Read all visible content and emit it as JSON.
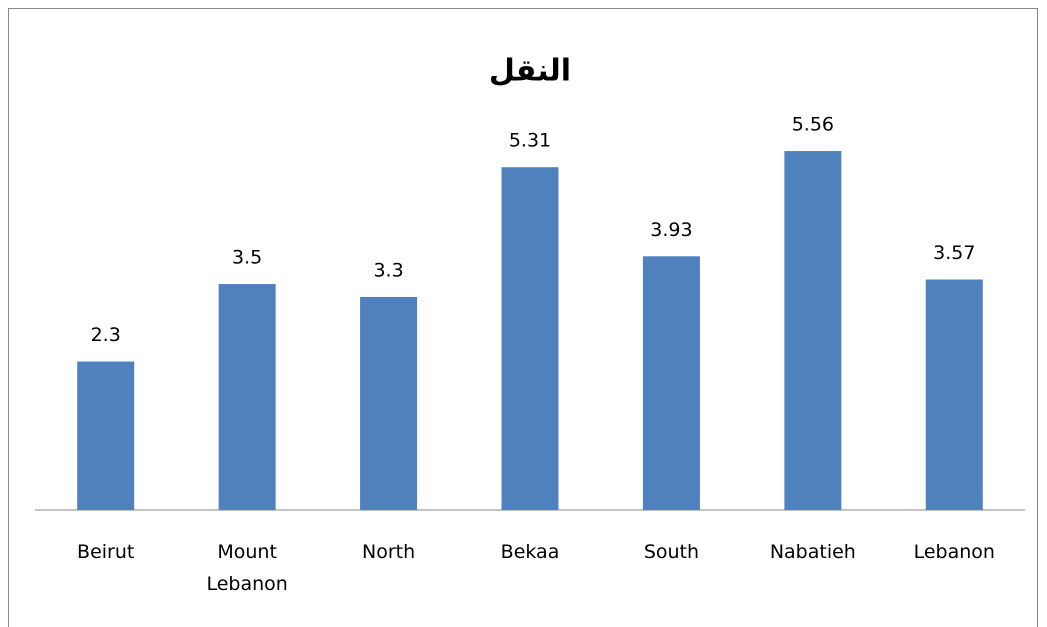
{
  "chart_data": {
    "type": "bar",
    "title": "النقل",
    "categories": [
      "Beirut",
      "Mount Lebanon",
      "North",
      "Bekaa",
      "South",
      "Nabatieh",
      "Lebanon"
    ],
    "values": [
      2.3,
      3.5,
      3.3,
      5.31,
      3.93,
      5.56,
      3.57
    ],
    "color": "#4f81bd",
    "ylim": [
      0,
      7.9
    ]
  }
}
